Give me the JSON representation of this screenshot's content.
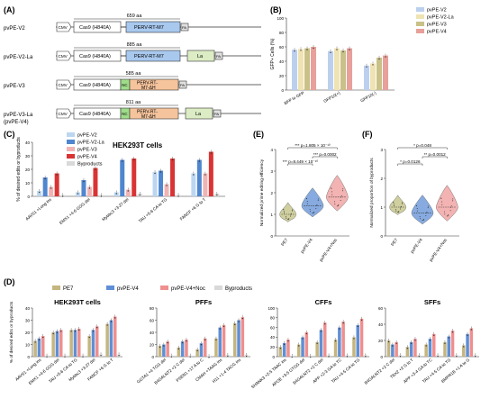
{
  "panelA": {
    "label": "(A)",
    "constructs": [
      {
        "name": "pvPE-V2",
        "aa": "659 aa",
        "cmv": "CMV",
        "cas9": "Cas9 (H840A)",
        "rt": "PERV-RT-M7",
        "pa": "PA"
      },
      {
        "name": "pvPE-V2-La",
        "aa": "885 aa",
        "cmv": "CMV",
        "cas9": "Cas9 (H840A)",
        "rt": "PERV-RT-M7",
        "la": "La",
        "pa": "PA"
      },
      {
        "name": "pvPE-V3",
        "aa": "585 aa",
        "cmv": "CMV",
        "cas9": "Cas9 (H840A)",
        "nc": "NC",
        "rt": "PERV-RT-M7-ΔH",
        "pa": "PA"
      },
      {
        "name": "pvPE-V3-La",
        "name2": "(pvPE-V4)",
        "aa": "811 aa",
        "cmv": "CMV",
        "cas9": "Cas9 (H840A)",
        "nc": "NC",
        "rt": "PERV-RT-M7-ΔH",
        "la": "La",
        "pa": "PA"
      }
    ]
  },
  "panelB": {
    "label": "(B)",
    "chart_data": {
      "type": "bar",
      "ylabel": "GFP+ Cells (%)",
      "ylim": [
        0,
        100
      ],
      "categories": [
        "BFP to GFP",
        "GFP10(+)",
        "GFP10(-)"
      ],
      "series": [
        {
          "name": "pvPE-V2",
          "color": "#bcd0ee",
          "values": [
            56,
            54,
            34
          ]
        },
        {
          "name": "pvPE-V2-La",
          "color": "#efe3b3",
          "values": [
            57,
            58,
            37
          ]
        },
        {
          "name": "pvPE-V3",
          "color": "#c9c188",
          "values": [
            58,
            55,
            45
          ]
        },
        {
          "name": "pvPE-V4",
          "color": "#e8a09a",
          "values": [
            60,
            58,
            48
          ]
        }
      ]
    }
  },
  "panelC": {
    "label": "(C)",
    "title": "HEK293T cells",
    "chart_data": {
      "type": "bar",
      "ylabel": "% of desired edits or byproducts",
      "ylim": [
        0,
        40
      ],
      "categories": [
        "AAVS1 +Long ins",
        "EMX1 +4-6 GGG del",
        "Mybbc3 +3-27 del",
        "TAU +5-6 CA to TG",
        "FANCF +6 G to T"
      ],
      "series": [
        {
          "name": "pvPE-V2",
          "color": "#bcd6f0",
          "values": [
            4,
            3,
            3,
            18,
            17
          ]
        },
        {
          "name": "pvPE-V2-La",
          "color": "#4f86cf",
          "values": [
            14,
            12,
            27,
            19,
            27
          ]
        },
        {
          "name": "pvPE-V3",
          "color": "#f0b4b4",
          "values": [
            7,
            7,
            5,
            9,
            17
          ]
        },
        {
          "name": "pvPE-V4",
          "color": "#d93434",
          "values": [
            17,
            21,
            28,
            28,
            33
          ]
        },
        {
          "name": "Byproducts",
          "color": "#d9d9d9",
          "values": [
            1,
            1,
            2,
            1,
            2
          ]
        }
      ]
    }
  },
  "panelE": {
    "label": "(E)",
    "ylabel": "Normalized prime editing efficiency",
    "chart_data": {
      "type": "violin",
      "ylim": [
        0,
        4
      ],
      "yticks": [
        "0",
        "1",
        "2",
        "3",
        "4"
      ],
      "categories": [
        "PE7",
        "pvPE-V4",
        "pvPE-V4+Noc"
      ],
      "medians": [
        1.0,
        1.4,
        1.8
      ],
      "colors": [
        "#bfbf7f",
        "#5f8fd6",
        "#ef9a9a"
      ],
      "annotations": [
        {
          "text": "*** p=1.805 × 10⁻¹⁰",
          "from": 0,
          "to": 2
        },
        {
          "text": "*** p=0.0002",
          "from": 1,
          "to": 2
        },
        {
          "text": "*** p=8.449 × 10⁻¹⁰",
          "from": 0,
          "to": 1
        }
      ]
    }
  },
  "panelF": {
    "label": "(F)",
    "ylabel": "Normalized proportion of byproducts",
    "chart_data": {
      "type": "violin",
      "ylim": [
        0,
        3
      ],
      "yticks": [
        "0",
        "1",
        "2",
        "3"
      ],
      "categories": [
        "PE7",
        "pvPE-V4",
        "pvPE-V4+Noc"
      ],
      "medians": [
        1.0,
        0.8,
        1.0
      ],
      "colors": [
        "#bfbf7f",
        "#5f8fd6",
        "#ef9a9a"
      ],
      "annotations": [
        {
          "text": "* p=0.048",
          "from": 0,
          "to": 2
        },
        {
          "text": "** p=0.0012",
          "from": 1,
          "to": 2
        },
        {
          "text": "* p=0.0126",
          "from": 0,
          "to": 1
        }
      ]
    }
  },
  "panelD": {
    "label": "(D)",
    "legend": [
      {
        "name": "PE7",
        "color": "#c5b57f"
      },
      {
        "name": "pvPE-V4",
        "color": "#5f8fd6"
      },
      {
        "name": "pvPE-V4+Noc",
        "color": "#ef8f8f"
      },
      {
        "name": "Byproducts",
        "color": "#d9d9d9"
      }
    ],
    "ylabel": "% of desired edits or byproducts",
    "groups": [
      {
        "title": "HEK293T cells",
        "ymax": 40,
        "yticks": [
          "0",
          "10",
          "20",
          "30",
          "40"
        ],
        "categories": [
          "AAVS1 +Long ins",
          "EMX1 +4-6 GGG del",
          "TAU +5-6 CA to TG",
          "Mybbc3 +3-27 del",
          "FANCF +6 G to T"
        ],
        "values": [
          [
            13,
            15,
            17,
            1
          ],
          [
            20,
            21,
            22,
            1
          ],
          [
            22,
            22,
            23,
            1
          ],
          [
            17,
            22,
            25,
            2
          ],
          [
            27,
            30,
            33,
            2
          ]
        ]
      },
      {
        "title": "PFFs",
        "ymax": 80,
        "yticks": [
          "0",
          "20",
          "40",
          "60",
          "80"
        ],
        "categories": [
          "GGTA1 +4 TGG del",
          "B4GALNT2 +2 C del",
          "PSEN1 +17 A to C",
          "CMAH +TAAG ins",
          "H11 +1-4 TACG ins"
        ],
        "values": [
          [
            18,
            20,
            25,
            2
          ],
          [
            15,
            25,
            28,
            2
          ],
          [
            12,
            22,
            30,
            1
          ],
          [
            30,
            48,
            52,
            3
          ],
          [
            55,
            60,
            65,
            3
          ]
        ]
      },
      {
        "title": "CFFs",
        "ymax": 100,
        "yticks": [
          "0",
          "20",
          "40",
          "60",
          "80",
          "100"
        ],
        "categories": [
          "SHANK3 +2-5 TAAC ins",
          "APOE +3-5 GTGG del",
          "B4GALNT2 +2 C del",
          "APP +2-3 GA to TC",
          "TAU +4-5 CA to TG"
        ],
        "values": [
          [
            20,
            28,
            35,
            2
          ],
          [
            25,
            40,
            50,
            2
          ],
          [
            30,
            55,
            70,
            3
          ],
          [
            35,
            60,
            72,
            3
          ],
          [
            40,
            65,
            78,
            3
          ]
        ]
      },
      {
        "title": "SFFs",
        "ymax": 60,
        "yticks": [
          "0",
          "20",
          "40",
          "60"
        ],
        "categories": [
          "B4GALNT2 +2 C del",
          "TBX2 +2 G to T",
          "APP +3-4 GA to TC",
          "TAU +4-5 CA to TG",
          "BMPR1B +1 A to G"
        ],
        "values": [
          [
            20,
            15,
            18,
            2
          ],
          [
            12,
            18,
            22,
            2
          ],
          [
            15,
            22,
            28,
            2
          ],
          [
            18,
            25,
            32,
            2
          ],
          [
            14,
            28,
            35,
            2
          ]
        ]
      }
    ]
  }
}
